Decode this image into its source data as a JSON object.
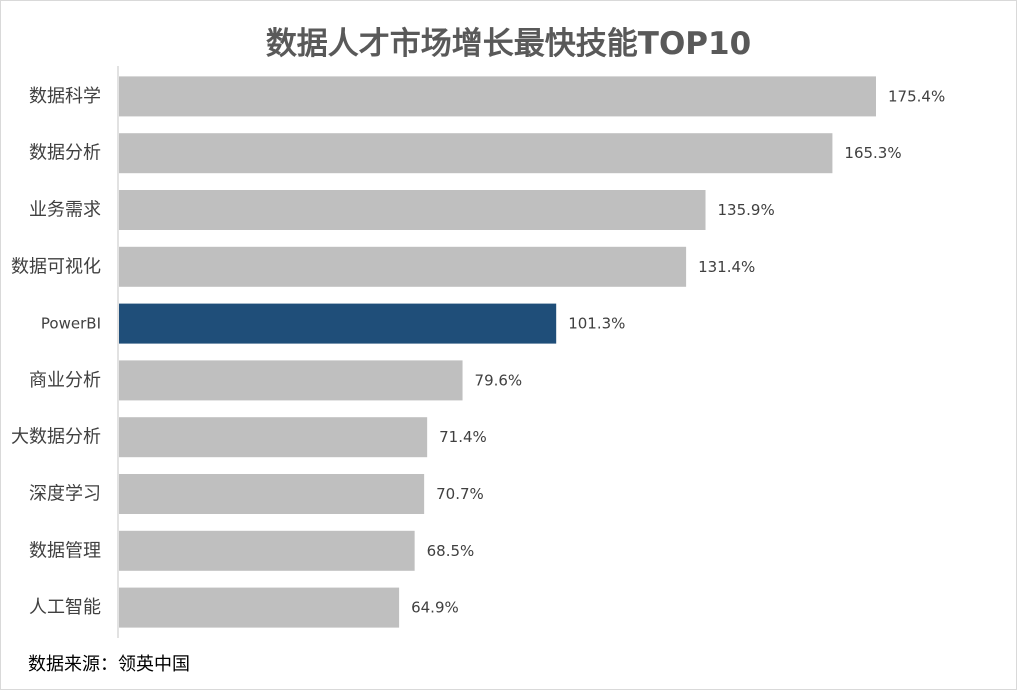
{
  "chart_data": {
    "type": "bar",
    "orientation": "horizontal",
    "title": "数据人才市场增长最快技能TOP10",
    "categories": [
      "数据科学",
      "数据分析",
      "业务需求",
      "数据可视化",
      "PowerBI",
      "商业分析",
      "大数据分析",
      "深度学习",
      "数据管理",
      "人工智能"
    ],
    "values": [
      175.4,
      165.3,
      135.9,
      131.4,
      101.3,
      79.6,
      71.4,
      70.7,
      68.5,
      64.9
    ],
    "value_labels": [
      "175.4%",
      "165.3%",
      "135.9%",
      "131.4%",
      "101.3%",
      "79.6%",
      "71.4%",
      "70.7%",
      "68.5%",
      "64.9%"
    ],
    "unit": "%",
    "highlight_category": "PowerBI",
    "xlim": [
      0,
      200
    ],
    "grid": false,
    "legend": "none",
    "colors": {
      "bar": "#bfbfbf",
      "highlight": "#1f4e79",
      "axis": "#d9d9d9",
      "label": "#404040"
    }
  },
  "footer": {
    "source": "数据来源：领英中国"
  }
}
